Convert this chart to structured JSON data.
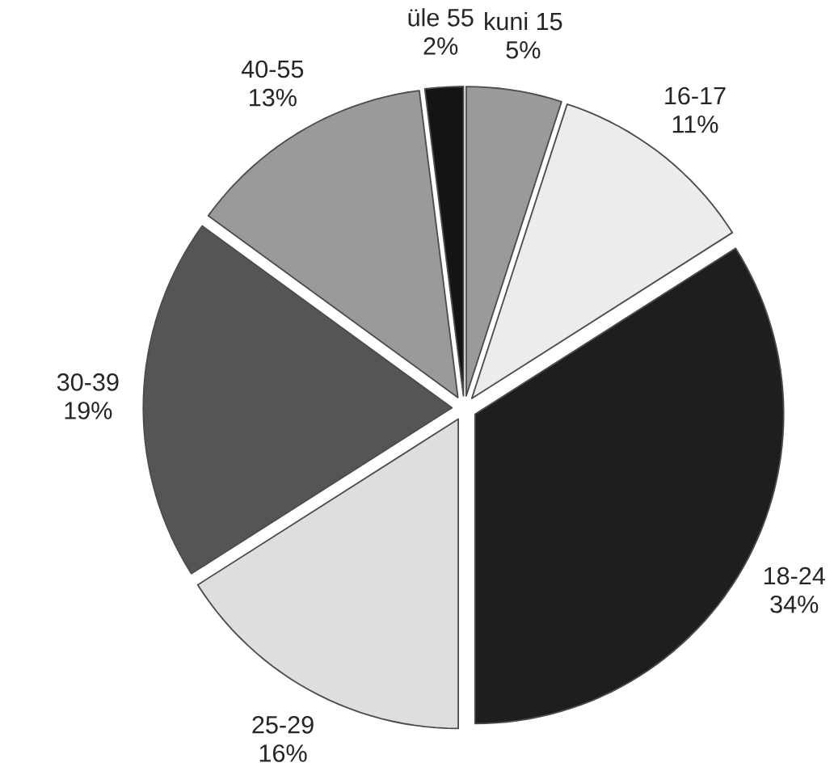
{
  "chart_data": {
    "type": "pie",
    "categories": [
      "kuni 15",
      "16-17",
      "18-24",
      "25-29",
      "30-39",
      "40-55",
      "üle 55"
    ],
    "values": [
      5,
      11,
      34,
      16,
      19,
      13,
      2
    ],
    "value_labels": [
      "5%",
      "11%",
      "34%",
      "16%",
      "19%",
      "13%",
      "2%"
    ],
    "colors": [
      "#9a9a9a",
      "#ececec",
      "#1e1e1e",
      "#dedede",
      "#555555",
      "#9a9a9a",
      "#141414"
    ]
  }
}
